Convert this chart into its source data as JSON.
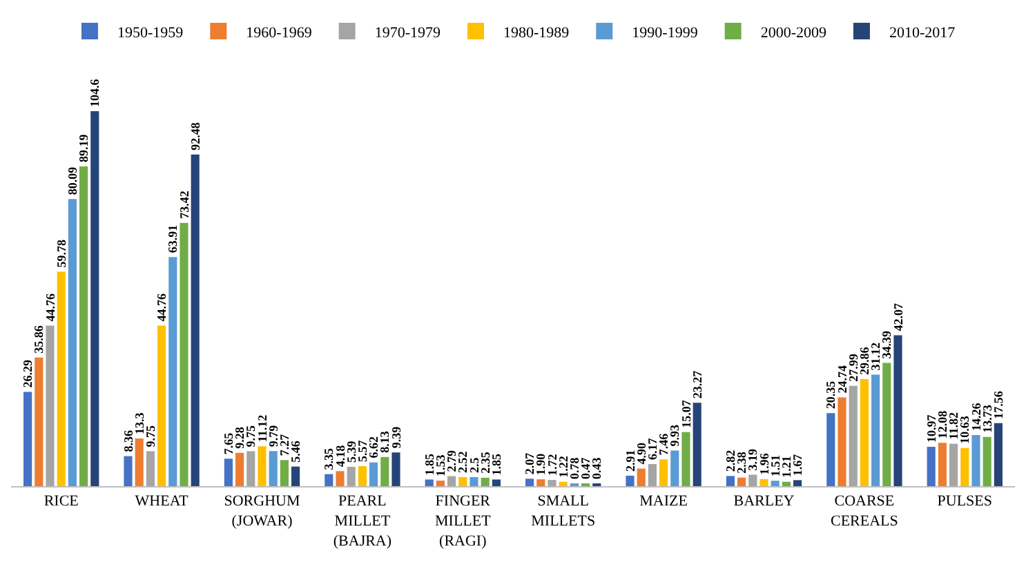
{
  "chart_data": {
    "type": "bar",
    "categories": [
      "RICE",
      "WHEAT",
      "SORGHUM (JOWAR)",
      "PEARL MILLET (BAJRA)",
      "FINGER MILLET (RAGI)",
      "SMALL MILLETS",
      "MAIZE",
      "BARLEY",
      "COARSE CEREALS",
      "PULSES"
    ],
    "series": [
      {
        "name": "1950-1959",
        "color": "#4472c4",
        "values": [
          26.29,
          8.36,
          7.65,
          3.35,
          1.85,
          2.07,
          2.91,
          2.82,
          20.35,
          10.97
        ],
        "value_labels": [
          "26.29",
          "8.36",
          "7.65",
          "3.35",
          "1.85",
          "2.07",
          "2.91",
          "2.82",
          "20.35",
          "10.97"
        ]
      },
      {
        "name": "1960-1969",
        "color": "#ed7d31",
        "values": [
          35.86,
          13.3,
          9.28,
          4.18,
          1.53,
          1.9,
          4.9,
          2.38,
          24.74,
          12.08
        ],
        "value_labels": [
          "35.86",
          "13.3",
          "9.28",
          "4.18",
          "1.53",
          "1.90",
          "4.90",
          "2.38",
          "24.74",
          "12.08"
        ]
      },
      {
        "name": "1970-1979",
        "color": "#a5a5a5",
        "values": [
          44.76,
          9.75,
          9.75,
          5.39,
          2.79,
          1.72,
          6.17,
          3.19,
          27.99,
          11.82
        ],
        "value_labels": [
          "44.76",
          "9.75",
          "9.75",
          "5.39",
          "2.79",
          "1.72",
          "6.17",
          "3.19",
          "27.99",
          "11.82"
        ]
      },
      {
        "name": "1980-1989",
        "color": "#ffc000",
        "values": [
          59.78,
          44.76,
          11.12,
          5.57,
          2.52,
          1.22,
          7.46,
          1.96,
          29.86,
          10.63
        ],
        "value_labels": [
          "59.78",
          "44.76",
          "11.12",
          "5.57",
          "2.52",
          "1.22",
          "7.46",
          "1.96",
          "29.86",
          "10.63"
        ]
      },
      {
        "name": "1990-1999",
        "color": "#5b9bd5",
        "values": [
          80.09,
          63.91,
          9.79,
          6.62,
          2.5,
          0.78,
          9.93,
          1.51,
          31.12,
          14.26
        ],
        "value_labels": [
          "80.09",
          "63.91",
          "9.79",
          "6.62",
          "2.5",
          "0.78",
          "9.93",
          "1.51",
          "31.12",
          "14.26"
        ]
      },
      {
        "name": "2000-2009",
        "color": "#70ad47",
        "values": [
          89.19,
          73.42,
          7.27,
          8.13,
          2.35,
          0.47,
          15.07,
          1.21,
          34.39,
          13.73
        ],
        "value_labels": [
          "89.19",
          "73.42",
          "7.27",
          "8.13",
          "2.35",
          "0.47",
          "15.07",
          "1.21",
          "34.39",
          "13.73"
        ]
      },
      {
        "name": "2010-2017",
        "color": "#264478",
        "values": [
          104.6,
          92.48,
          5.46,
          9.39,
          1.85,
          0.43,
          23.27,
          1.67,
          42.07,
          17.56
        ],
        "value_labels": [
          "104.6",
          "92.48",
          "5.46",
          "9.39",
          "1.85",
          "0.43",
          "23.27",
          "1.67",
          "42.07",
          "17.56"
        ]
      }
    ],
    "legend": "top"
  }
}
